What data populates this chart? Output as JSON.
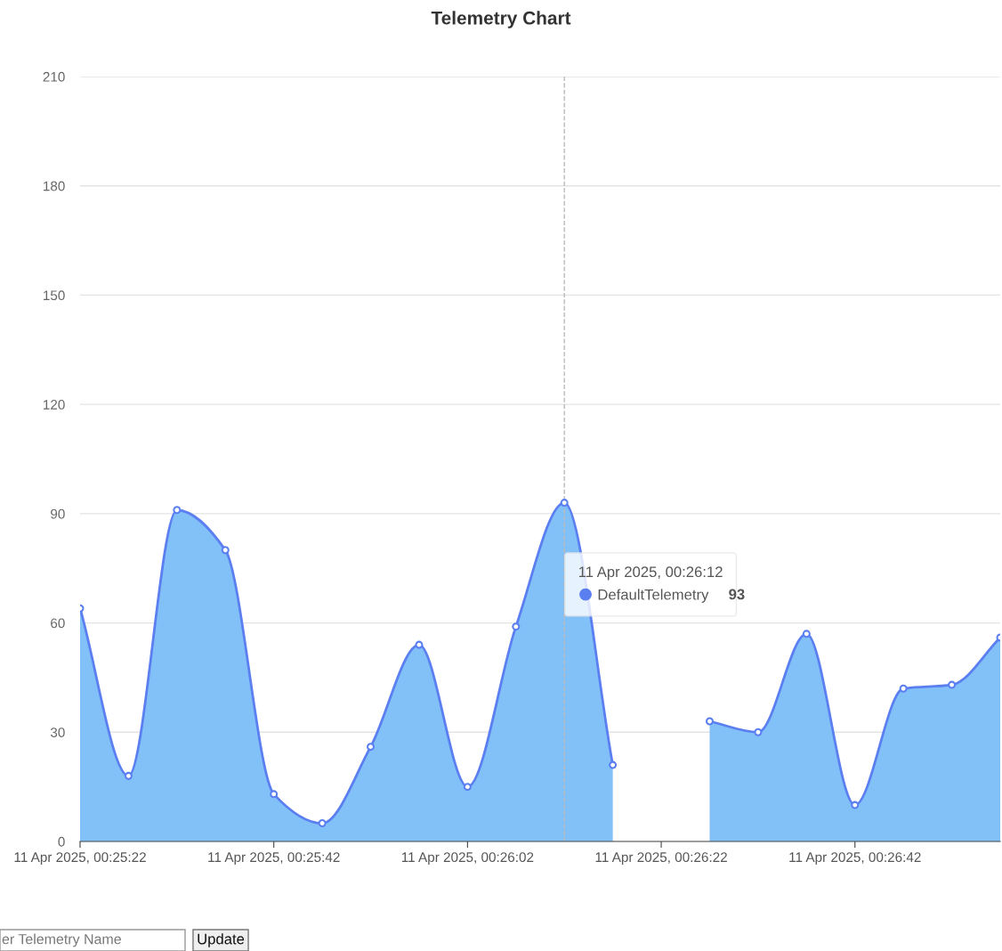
{
  "chart_data": {
    "type": "area",
    "title": "Telemetry Chart",
    "x": [
      "2025-04-11T00:25:22",
      "2025-04-11T00:25:27",
      "2025-04-11T00:25:32",
      "2025-04-11T00:25:37",
      "2025-04-11T00:25:42",
      "2025-04-11T00:25:47",
      "2025-04-11T00:25:52",
      "2025-04-11T00:25:57",
      "2025-04-11T00:26:02",
      "2025-04-11T00:26:07",
      "2025-04-11T00:26:12",
      "2025-04-11T00:26:17",
      "2025-04-11T00:26:22",
      "2025-04-11T00:26:27",
      "2025-04-11T00:26:32",
      "2025-04-11T00:26:37",
      "2025-04-11T00:26:42",
      "2025-04-11T00:26:47",
      "2025-04-11T00:26:52",
      "2025-04-11T00:26:57"
    ],
    "series": [
      {
        "name": "DefaultTelemetry",
        "color": "#5b7ff0",
        "values": [
          64,
          18,
          91,
          80,
          13,
          5,
          26,
          54,
          15,
          59,
          93,
          21,
          null,
          33,
          30,
          57,
          10,
          42,
          43,
          56
        ]
      }
    ],
    "xlim": [
      "2025-04-11T00:25:22",
      "2025-04-11T00:26:57"
    ],
    "xticks": [
      {
        "value": "2025-04-11T00:25:22",
        "label": "11 Apr 2025, 00:25:22"
      },
      {
        "value": "2025-04-11T00:25:42",
        "label": "11 Apr 2025, 00:25:42"
      },
      {
        "value": "2025-04-11T00:26:02",
        "label": "11 Apr 2025, 00:26:02"
      },
      {
        "value": "2025-04-11T00:26:22",
        "label": "11 Apr 2025, 00:26:22"
      },
      {
        "value": "2025-04-11T00:26:42",
        "label": "11 Apr 2025, 00:26:42"
      }
    ],
    "ylim": [
      0,
      210
    ],
    "yticks": [
      0,
      30,
      60,
      90,
      120,
      150,
      180,
      210
    ],
    "grid": "y",
    "marker": "circle",
    "line_style": "solid",
    "legend": "center",
    "ref_lines": [
      {
        "axis": "x",
        "value": "2025-04-11T00:26:12",
        "color": "#bbbbbb",
        "line_style": "dashed"
      }
    ],
    "annotations": [
      "11 Apr 2025, 00:26:12",
      "93",
      "er Telemetry Name",
      "Update"
    ]
  }
}
